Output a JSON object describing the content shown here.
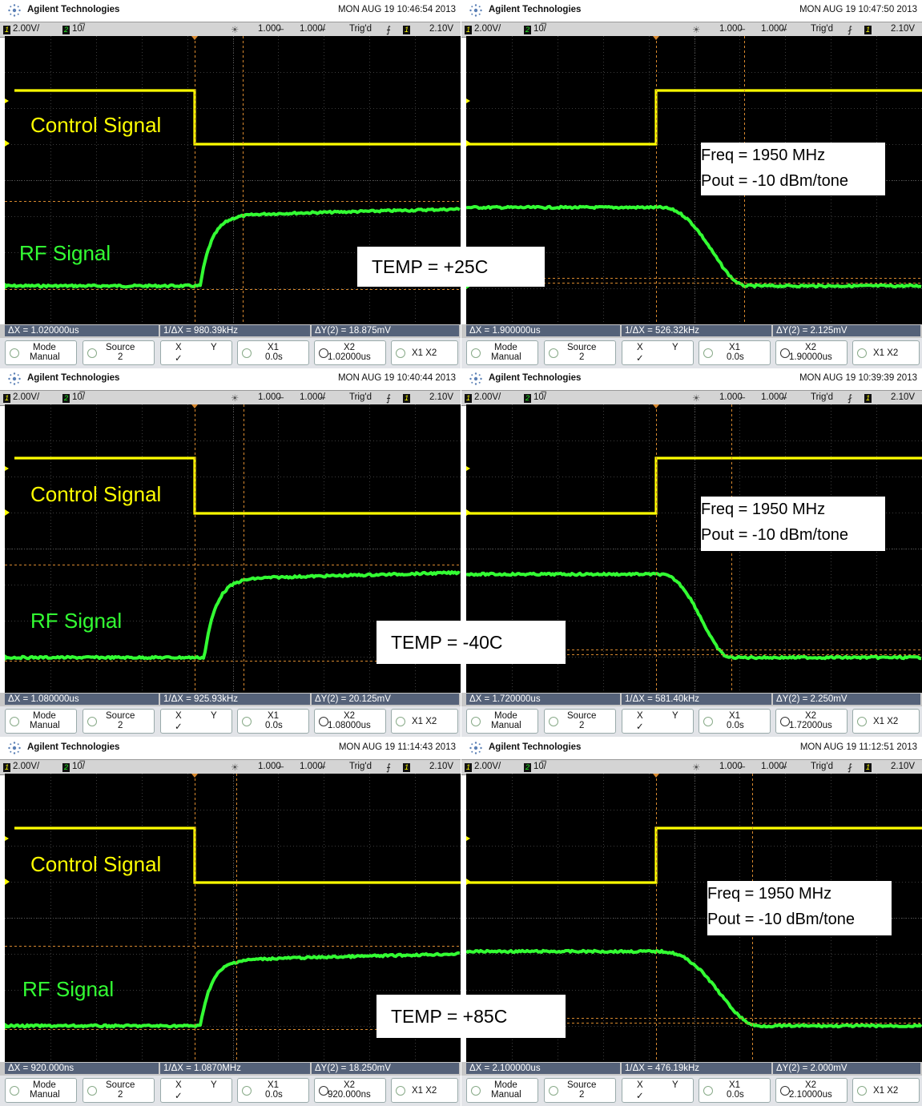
{
  "brand": "Agilent Technologies",
  "colors": {
    "ch1": "#ffff00",
    "ch2": "#33ff33",
    "grid": "#3c3c3c",
    "cursor": "#d8892f"
  },
  "status": {
    "ch1_scale": "2.00V/",
    "ch2_scale": "10̅/",
    "time_delay": "1.000̶",
    "time_scale": "1.000̶/",
    "trig": "Trig'd",
    "trig_level": "2.10V"
  },
  "labels": {
    "control": "Control Signal",
    "rf": "RF Signal",
    "freq": "Freq = 1950 MHz",
    "pout": "Pout = -10 dBm/tone"
  },
  "keys": {
    "mode": "Mode",
    "mode_val": "Manual",
    "source": "Source",
    "source_val": "2",
    "x": "X",
    "y": "Y",
    "x1": "X1",
    "x1_val": "0.0s",
    "x2": "X2",
    "x1x2": "X1 X2"
  },
  "panels": [
    {
      "date": "MON AUG 19 10:46:54 2013",
      "dx": "ΔX = 1.020000us",
      "inv": "1/ΔX = 980.39kHz",
      "dy": "ΔY(2) = 18.875mV",
      "x2_val": "1.02000us",
      "temp": "TEMP = +25C"
    },
    {
      "date": "MON AUG 19 10:47:50 2013",
      "dx": "ΔX = 1.900000us",
      "inv": "1/ΔX = 526.32kHz",
      "dy": "ΔY(2) = 2.125mV",
      "x2_val": "1.90000us"
    },
    {
      "date": "MON AUG 19 10:40:44 2013",
      "dx": "ΔX = 1.080000us",
      "inv": "1/ΔX = 925.93kHz",
      "dy": "ΔY(2) = 20.125mV",
      "x2_val": "1.08000us",
      "temp": "TEMP = -40C"
    },
    {
      "date": "MON AUG 19 10:39:39 2013",
      "dx": "ΔX = 1.720000us",
      "inv": "1/ΔX = 581.40kHz",
      "dy": "ΔY(2) = 2.250mV",
      "x2_val": "1.72000us"
    },
    {
      "date": "MON AUG 19 11:14:43 2013",
      "dx": "ΔX = 920.000ns",
      "inv": "1/ΔX = 1.0870MHz",
      "dy": "ΔY(2) = 18.250mV",
      "x2_val": "920.000ns",
      "temp": "TEMP = +85C"
    },
    {
      "date": "MON AUG 19 11:12:51 2013",
      "dx": "ΔX = 2.100000us",
      "inv": "1/ΔX = 476.19kHz",
      "dy": "ΔY(2) = 2.000mV",
      "x2_val": "2.10000us"
    }
  ]
}
